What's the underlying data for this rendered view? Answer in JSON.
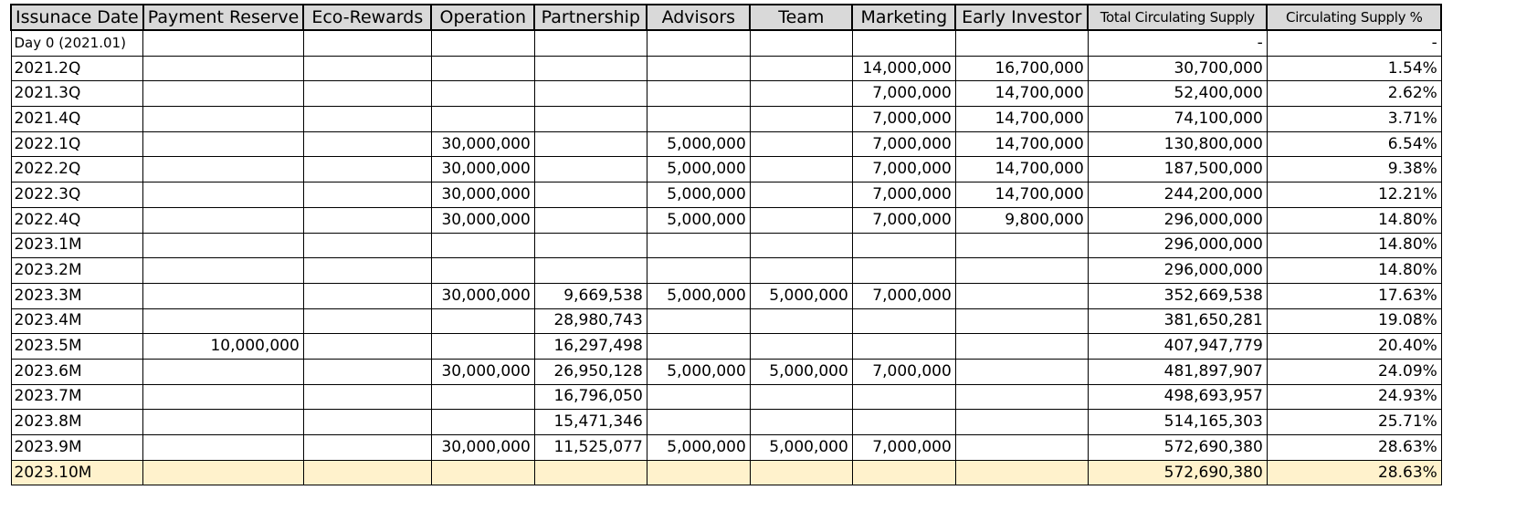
{
  "columns": [
    "Issunace Date",
    "Payment Reserve",
    "Eco-Rewards",
    "Operation",
    "Partnership",
    "Advisors",
    "Team",
    "Marketing",
    "Early Investor",
    "Total Circulating Supply",
    "Circulating Supply %"
  ],
  "rows": [
    [
      "Day 0 (2021.01)",
      "",
      "",
      "",
      "",
      "",
      "",
      "",
      "",
      "-",
      "-"
    ],
    [
      "2021.2Q",
      "",
      "",
      "",
      "",
      "",
      "",
      "14,000,000",
      "16,700,000",
      "30,700,000",
      "1.54%"
    ],
    [
      "2021.3Q",
      "",
      "",
      "",
      "",
      "",
      "",
      "7,000,000",
      "14,700,000",
      "52,400,000",
      "2.62%"
    ],
    [
      "2021.4Q",
      "",
      "",
      "",
      "",
      "",
      "",
      "7,000,000",
      "14,700,000",
      "74,100,000",
      "3.71%"
    ],
    [
      "2022.1Q",
      "",
      "",
      "30,000,000",
      "",
      "5,000,000",
      "",
      "7,000,000",
      "14,700,000",
      "130,800,000",
      "6.54%"
    ],
    [
      "2022.2Q",
      "",
      "",
      "30,000,000",
      "",
      "5,000,000",
      "",
      "7,000,000",
      "14,700,000",
      "187,500,000",
      "9.38%"
    ],
    [
      "2022.3Q",
      "",
      "",
      "30,000,000",
      "",
      "5,000,000",
      "",
      "7,000,000",
      "14,700,000",
      "244,200,000",
      "12.21%"
    ],
    [
      "2022.4Q",
      "",
      "",
      "30,000,000",
      "",
      "5,000,000",
      "",
      "7,000,000",
      "9,800,000",
      "296,000,000",
      "14.80%"
    ],
    [
      "2023.1M",
      "",
      "",
      "",
      "",
      "",
      "",
      "",
      "",
      "296,000,000",
      "14.80%"
    ],
    [
      "2023.2M",
      "",
      "",
      "",
      "",
      "",
      "",
      "",
      "",
      "296,000,000",
      "14.80%"
    ],
    [
      "2023.3M",
      "",
      "",
      "30,000,000",
      "9,669,538",
      "5,000,000",
      "5,000,000",
      "7,000,000",
      "",
      "352,669,538",
      "17.63%"
    ],
    [
      "2023.4M",
      "",
      "",
      "",
      "28,980,743",
      "",
      "",
      "",
      "",
      "381,650,281",
      "19.08%"
    ],
    [
      "2023.5M",
      "10,000,000",
      "",
      "",
      "16,297,498",
      "",
      "",
      "",
      "",
      "407,947,779",
      "20.40%"
    ],
    [
      "2023.6M",
      "",
      "",
      "30,000,000",
      "26,950,128",
      "5,000,000",
      "5,000,000",
      "7,000,000",
      "",
      "481,897,907",
      "24.09%"
    ],
    [
      "2023.7M",
      "",
      "",
      "",
      "16,796,050",
      "",
      "",
      "",
      "",
      "498,693,957",
      "24.93%"
    ],
    [
      "2023.8M",
      "",
      "",
      "",
      "15,471,346",
      "",
      "",
      "",
      "",
      "514,165,303",
      "25.71%"
    ],
    [
      "2023.9M",
      "",
      "",
      "30,000,000",
      "11,525,077",
      "5,000,000",
      "5,000,000",
      "7,000,000",
      "",
      "572,690,380",
      "28.63%"
    ],
    [
      "2023.10M",
      "",
      "",
      "",
      "",
      "",
      "",
      "",
      "",
      "572,690,380",
      "28.63%"
    ]
  ],
  "highlight_row_color": "#fff2cc",
  "header_color": "#d9d9d9"
}
